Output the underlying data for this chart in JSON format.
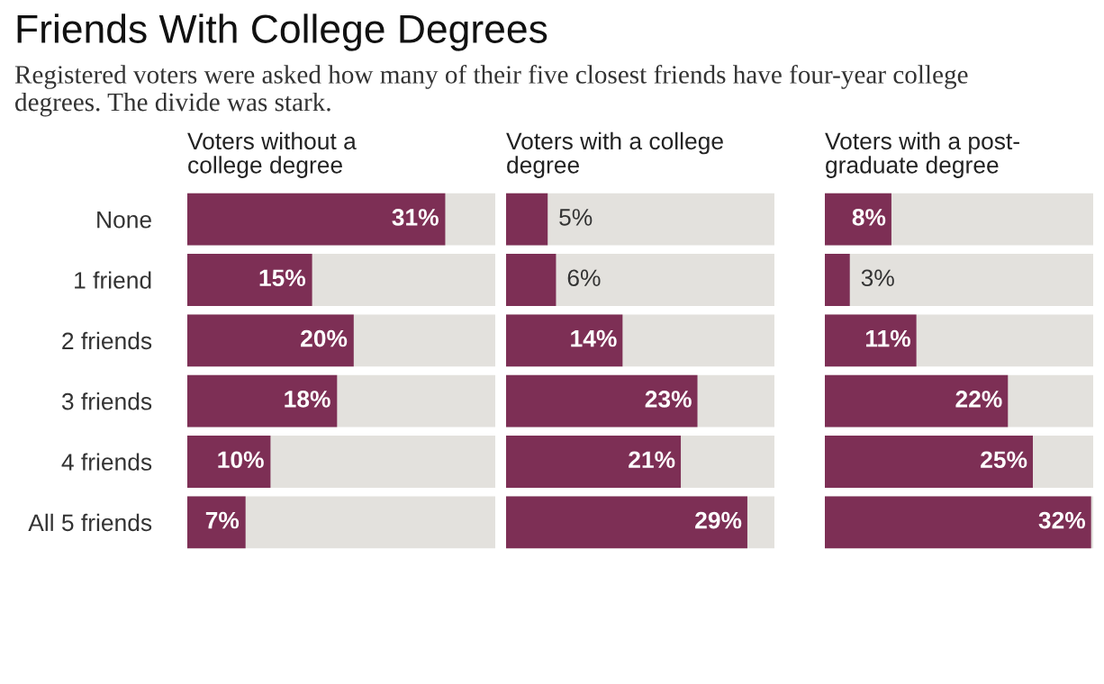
{
  "chart_data": [
    {
      "type": "bar",
      "orientation": "horizontal",
      "title": "Friends With College Degrees",
      "subtitle": "Registered voters were asked how many of their five closest friends have four-year college\ndegrees. The divide was stark.",
      "xlabel": "Voters without a\ncollege degree",
      "categories": [
        "None",
        "1 friend",
        "2 friends",
        "3 friends",
        "4 friends",
        "All 5 friends"
      ],
      "values": [
        31,
        15,
        20,
        18,
        10,
        7
      ],
      "value_labels": [
        "31%",
        "15%",
        "20%",
        "18%",
        "10%",
        "7%"
      ],
      "color": "#7d2f55"
    },
    {
      "type": "bar",
      "orientation": "horizontal",
      "xlabel": "Voters with a college\ndegree",
      "categories": [
        null,
        null,
        null,
        null,
        null,
        null
      ],
      "values": [
        5,
        6,
        14,
        23,
        21,
        29
      ],
      "value_labels": [
        "5%",
        "6%",
        "14%",
        "23%",
        "21%",
        "29%"
      ],
      "color": "#7d2f55"
    },
    {
      "type": "bar",
      "orientation": "horizontal",
      "xlabel": "Voters with a post-\ngraduate degree",
      "categories": [
        null,
        null,
        null,
        null,
        null,
        null
      ],
      "values": [
        8,
        3,
        11,
        22,
        25,
        32
      ],
      "value_labels": [
        "8%",
        "3%",
        "11%",
        "22%",
        "25%",
        "32%"
      ],
      "color": "#7d2f55"
    }
  ]
}
